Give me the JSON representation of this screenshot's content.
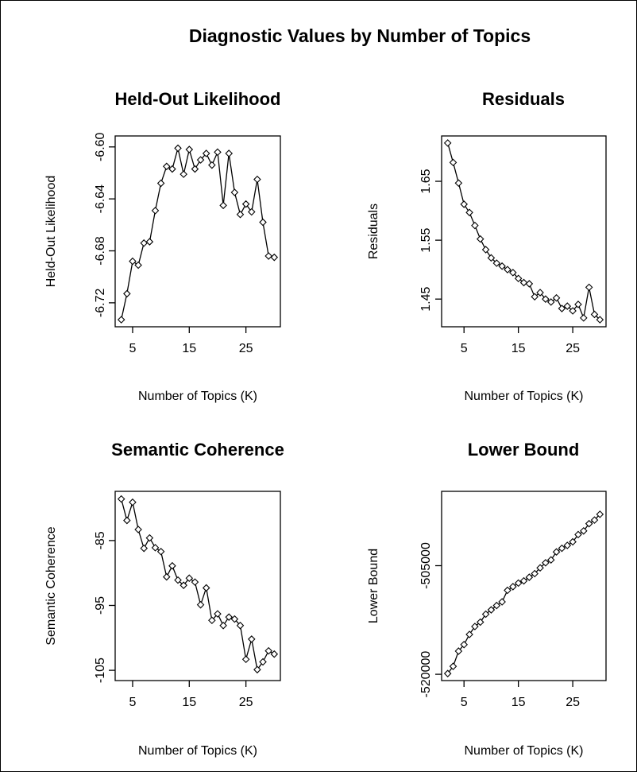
{
  "figure": {
    "title": "Diagnostic Values by Number of Topics"
  },
  "chart_data": [
    {
      "type": "line",
      "title": "Held-Out Likelihood",
      "xlabel": "Number of Topics (K)",
      "ylabel": "Held-Out Likelihood",
      "xlim": [
        3,
        30
      ],
      "ylim": [
        -6.733,
        -6.597
      ],
      "xticks": [
        5,
        15,
        25
      ],
      "yticks": [
        -6.72,
        -6.68,
        -6.64,
        -6.6
      ],
      "ytick_labels": [
        "-6.72",
        "-6.68",
        "-6.64",
        "-6.60"
      ],
      "series": [
        {
          "x": [
            3,
            4,
            5,
            6,
            7,
            8,
            9,
            10,
            11,
            12,
            13,
            14,
            15,
            16,
            17,
            18,
            19,
            20,
            21,
            22,
            23,
            24,
            25,
            26,
            27,
            28,
            29,
            30
          ],
          "values": [
            -6.733,
            -6.713,
            -6.688,
            -6.691,
            -6.674,
            -6.673,
            -6.649,
            -6.628,
            -6.615,
            -6.617,
            -6.601,
            -6.621,
            -6.602,
            -6.617,
            -6.61,
            -6.605,
            -6.614,
            -6.604,
            -6.645,
            -6.605,
            -6.635,
            -6.652,
            -6.644,
            -6.65,
            -6.625,
            -6.658,
            -6.684,
            -6.685
          ]
        }
      ]
    },
    {
      "type": "line",
      "title": "Residuals",
      "xlabel": "Number of Topics (K)",
      "ylabel": "Residuals",
      "xlim": [
        2,
        30
      ],
      "ylim": [
        1.415,
        1.715
      ],
      "xticks": [
        5,
        15,
        25
      ],
      "yticks": [
        1.45,
        1.55,
        1.65
      ],
      "ytick_labels": [
        "1.45",
        "1.55",
        "1.65"
      ],
      "series": [
        {
          "x": [
            2,
            3,
            4,
            5,
            6,
            7,
            8,
            9,
            10,
            11,
            12,
            13,
            14,
            15,
            16,
            17,
            18,
            19,
            20,
            21,
            22,
            23,
            24,
            25,
            26,
            27,
            28,
            29,
            30
          ],
          "values": [
            1.715,
            1.682,
            1.647,
            1.611,
            1.597,
            1.575,
            1.552,
            1.534,
            1.52,
            1.511,
            1.506,
            1.5,
            1.495,
            1.485,
            1.478,
            1.476,
            1.454,
            1.461,
            1.45,
            1.445,
            1.452,
            1.434,
            1.438,
            1.43,
            1.441,
            1.418,
            1.47,
            1.424,
            1.415
          ]
        }
      ]
    },
    {
      "type": "line",
      "title": "Semantic Coherence",
      "xlabel": "Number of Topics (K)",
      "ylabel": "Semantic Coherence",
      "xlim": [
        3,
        30
      ],
      "ylim": [
        -105.5,
        -78.5
      ],
      "xticks": [
        5,
        15,
        25
      ],
      "yticks": [
        -105,
        -95,
        -85
      ],
      "ytick_labels": [
        "-105",
        "-95",
        "-85"
      ],
      "series": [
        {
          "x": [
            3,
            4,
            5,
            6,
            7,
            8,
            9,
            10,
            11,
            12,
            13,
            14,
            15,
            16,
            17,
            18,
            19,
            20,
            21,
            22,
            23,
            24,
            25,
            26,
            27,
            28,
            29,
            30
          ],
          "values": [
            -78.6,
            -81.9,
            -79.1,
            -83.3,
            -86.2,
            -84.6,
            -86.1,
            -86.7,
            -90.6,
            -88.9,
            -91.1,
            -91.9,
            -90.8,
            -91.4,
            -94.9,
            -92.3,
            -97.3,
            -96.3,
            -98.1,
            -96.8,
            -97.1,
            -98.1,
            -103.3,
            -100.2,
            -104.9,
            -103.7,
            -102.0,
            -102.5
          ]
        }
      ]
    },
    {
      "type": "line",
      "title": "Lower Bound",
      "xlabel": "Number of Topics (K)",
      "ylabel": "Lower Bound",
      "xlim": [
        2,
        30
      ],
      "ylim": [
        -519900,
        -495700
      ],
      "xticks": [
        5,
        15,
        25
      ],
      "yticks": [
        -520000,
        -505000
      ],
      "ytick_labels": [
        "-520000",
        "-505000"
      ],
      "series": [
        {
          "x": [
            2,
            3,
            4,
            5,
            6,
            7,
            8,
            9,
            10,
            11,
            12,
            13,
            14,
            15,
            16,
            17,
            18,
            19,
            20,
            21,
            22,
            23,
            24,
            25,
            26,
            27,
            28,
            29,
            30
          ],
          "values": [
            -519900,
            -518900,
            -516800,
            -515900,
            -514500,
            -513400,
            -512800,
            -511700,
            -511100,
            -510500,
            -510000,
            -508400,
            -507900,
            -507400,
            -507100,
            -506600,
            -506100,
            -505300,
            -504600,
            -504200,
            -503100,
            -502600,
            -502200,
            -501700,
            -500700,
            -500200,
            -499200,
            -498700,
            -497900
          ]
        }
      ]
    }
  ]
}
